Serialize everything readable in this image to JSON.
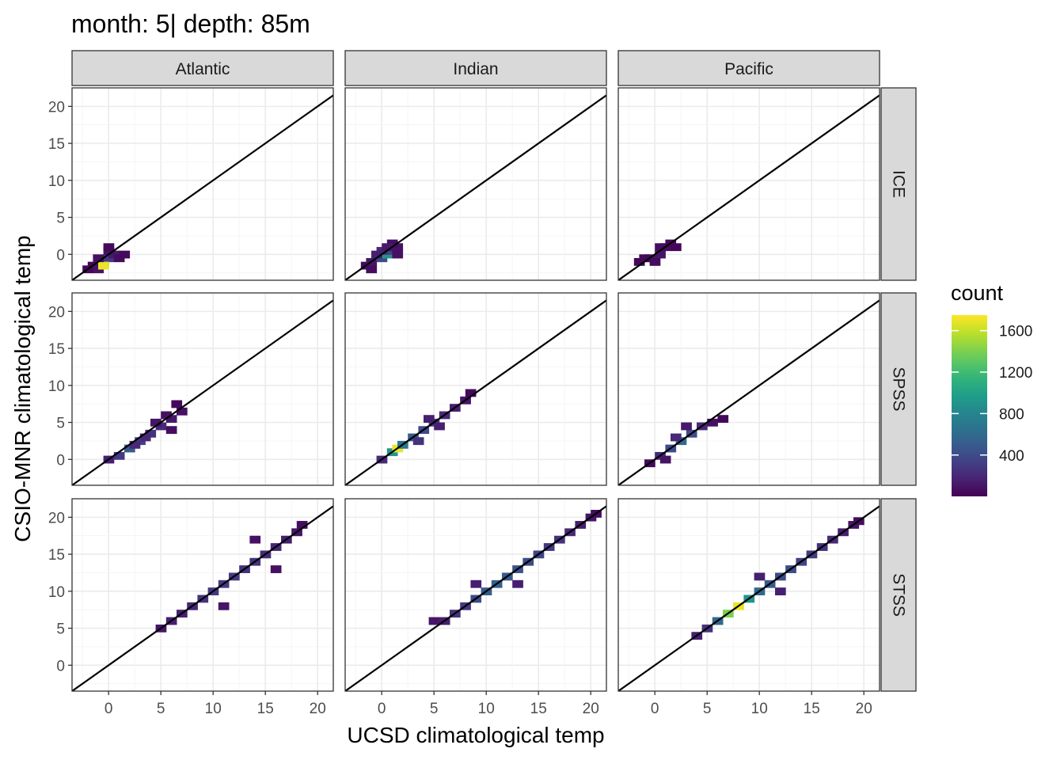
{
  "chart_data": {
    "type": "heatmap",
    "title": "month: 5| depth: 85m",
    "xlabel": "UCSD climatological temp",
    "ylabel": "CSIO-MNR climatological temp",
    "xlim": [
      -3.5,
      21.5
    ],
    "ylim": [
      -3.5,
      22.5
    ],
    "x_ticks": [
      0,
      5,
      10,
      15,
      20
    ],
    "y_ticks": [
      0,
      5,
      10,
      15,
      20
    ],
    "grid": true,
    "reference_line": "y = x",
    "columns": [
      "Atlantic",
      "Indian",
      "Pacific"
    ],
    "rows": [
      "ICE",
      "SPSS",
      "STSS"
    ],
    "legend": {
      "title": "count",
      "placement": "right",
      "colormap": "viridis",
      "min": 1,
      "max": 1750,
      "ticks": [
        400,
        800,
        1200,
        1600
      ]
    },
    "panels": [
      {
        "column": "Atlantic",
        "row": "ICE",
        "band": [
          [
            -1.5,
            -1.5,
            30
          ],
          [
            -0.5,
            -1,
            150
          ],
          [
            -1,
            -2,
            90
          ],
          [
            0,
            -0.5,
            300
          ],
          [
            -0.5,
            -1.5,
            1700
          ],
          [
            0.5,
            0,
            120
          ],
          [
            1,
            -0.5,
            60
          ],
          [
            0,
            0.5,
            90
          ],
          [
            0,
            1,
            40
          ],
          [
            -1,
            -0.5,
            80
          ],
          [
            1.5,
            0,
            40
          ],
          [
            -2,
            -2,
            30
          ]
        ]
      },
      {
        "column": "Indian",
        "row": "ICE",
        "band": [
          [
            -1.5,
            -1.5,
            40
          ],
          [
            -1,
            -1,
            100
          ],
          [
            0,
            -0.5,
            400
          ],
          [
            0.5,
            0,
            900
          ],
          [
            1,
            0.5,
            350
          ],
          [
            0,
            0.5,
            200
          ],
          [
            1.5,
            1,
            90
          ],
          [
            1,
            1.5,
            70
          ],
          [
            -1,
            -2,
            60
          ],
          [
            -0.5,
            0,
            150
          ],
          [
            1.5,
            0,
            80
          ],
          [
            0.5,
            1,
            120
          ]
        ]
      },
      {
        "column": "Pacific",
        "row": "ICE",
        "band": [
          [
            -1.5,
            -1,
            30
          ],
          [
            -0.5,
            -0.5,
            80
          ],
          [
            0.5,
            0,
            100
          ],
          [
            1,
            1,
            70
          ],
          [
            1.5,
            1.5,
            40
          ],
          [
            0,
            -1,
            50
          ],
          [
            2,
            1,
            30
          ],
          [
            -1,
            -0.5,
            40
          ],
          [
            0.5,
            1,
            60
          ]
        ]
      },
      {
        "column": "Atlantic",
        "row": "SPSS",
        "band": [
          [
            0,
            0,
            150
          ],
          [
            1,
            0.5,
            300
          ],
          [
            2,
            1.5,
            500
          ],
          [
            3,
            2.5,
            350
          ],
          [
            4,
            3.5,
            250
          ],
          [
            5,
            4.5,
            200
          ],
          [
            6,
            5.5,
            120
          ],
          [
            7,
            6.5,
            80
          ],
          [
            3.5,
            3,
            200
          ],
          [
            5.5,
            6,
            80
          ],
          [
            6.5,
            7.5,
            40
          ],
          [
            6,
            4,
            60
          ],
          [
            4.5,
            5,
            100
          ],
          [
            2.5,
            2,
            200
          ]
        ]
      },
      {
        "column": "Indian",
        "row": "SPSS",
        "band": [
          [
            0,
            0,
            200
          ],
          [
            1,
            1,
            900
          ],
          [
            1.5,
            1.5,
            1700
          ],
          [
            2,
            2,
            700
          ],
          [
            3,
            3,
            500
          ],
          [
            4,
            4,
            400
          ],
          [
            5,
            5,
            300
          ],
          [
            6,
            6,
            200
          ],
          [
            7,
            7,
            150
          ],
          [
            8,
            8,
            100
          ],
          [
            8.5,
            9,
            40
          ],
          [
            4.5,
            5.5,
            150
          ],
          [
            5.5,
            4.5,
            150
          ],
          [
            3.5,
            2.5,
            250
          ]
        ]
      },
      {
        "column": "Pacific",
        "row": "SPSS",
        "band": [
          [
            -0.5,
            -0.5,
            40
          ],
          [
            0.5,
            0.5,
            200
          ],
          [
            1.5,
            1.5,
            400
          ],
          [
            2.5,
            2.5,
            600
          ],
          [
            3.5,
            3.5,
            400
          ],
          [
            4.5,
            4.5,
            200
          ],
          [
            5.5,
            5,
            80
          ],
          [
            6.5,
            5.5,
            40
          ],
          [
            2,
            3,
            200
          ],
          [
            3,
            4.5,
            120
          ],
          [
            1,
            0,
            100
          ]
        ]
      },
      {
        "column": "Atlantic",
        "row": "STSS",
        "band": [
          [
            5,
            5,
            100
          ],
          [
            6,
            6,
            150
          ],
          [
            7,
            7,
            150
          ],
          [
            8,
            8,
            200
          ],
          [
            9,
            9,
            250
          ],
          [
            10,
            10,
            300
          ],
          [
            11,
            11,
            300
          ],
          [
            12,
            12,
            300
          ],
          [
            13,
            13,
            250
          ],
          [
            14,
            14,
            250
          ],
          [
            15,
            15,
            200
          ],
          [
            16,
            16,
            200
          ],
          [
            17,
            17,
            150
          ],
          [
            18,
            18,
            100
          ],
          [
            18.5,
            19,
            60
          ],
          [
            11,
            8,
            100
          ],
          [
            14,
            17,
            80
          ],
          [
            16,
            13,
            80
          ]
        ]
      },
      {
        "column": "Indian",
        "row": "STSS",
        "band": [
          [
            5,
            6,
            100
          ],
          [
            6,
            6,
            150
          ],
          [
            7,
            7,
            250
          ],
          [
            8,
            8,
            300
          ],
          [
            9,
            9,
            400
          ],
          [
            10,
            10,
            500
          ],
          [
            11,
            11,
            550
          ],
          [
            12,
            12,
            500
          ],
          [
            13,
            13,
            450
          ],
          [
            14,
            14,
            400
          ],
          [
            15,
            15,
            350
          ],
          [
            16,
            16,
            300
          ],
          [
            17,
            17,
            250
          ],
          [
            18,
            18,
            200
          ],
          [
            19,
            19,
            150
          ],
          [
            20,
            20,
            100
          ],
          [
            20.5,
            20.5,
            60
          ],
          [
            9,
            11,
            150
          ],
          [
            13,
            11,
            150
          ]
        ]
      },
      {
        "column": "Pacific",
        "row": "STSS",
        "band": [
          [
            4,
            4,
            150
          ],
          [
            5,
            5,
            250
          ],
          [
            6,
            6,
            600
          ],
          [
            7,
            7,
            1400
          ],
          [
            8,
            8,
            1700
          ],
          [
            9,
            9,
            900
          ],
          [
            10,
            10,
            600
          ],
          [
            11,
            11,
            500
          ],
          [
            12,
            12,
            400
          ],
          [
            13,
            13,
            400
          ],
          [
            14,
            14,
            350
          ],
          [
            15,
            15,
            300
          ],
          [
            16,
            16,
            250
          ],
          [
            17,
            17,
            200
          ],
          [
            18,
            18,
            150
          ],
          [
            19,
            19,
            100
          ],
          [
            19.5,
            19.5,
            60
          ],
          [
            10,
            12,
            150
          ],
          [
            12,
            10,
            150
          ]
        ]
      }
    ]
  }
}
